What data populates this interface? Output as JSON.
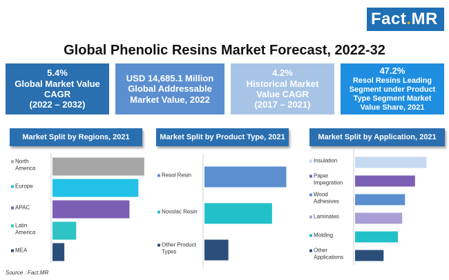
{
  "logo": {
    "prefix": "Fact",
    "dot": ".",
    "suffix": "MR"
  },
  "title": "Global Phenolic Resins Market Forecast, 2022-32",
  "kpis": [
    {
      "lines": [
        "5.4%",
        "Global Market Value",
        "CAGR",
        "(2022 – 2032)"
      ]
    },
    {
      "lines": [
        "USD 14,685.1 Million",
        "Global Addressable",
        "Market Value, 2022"
      ]
    },
    {
      "lines": [
        "4.2%",
        "Historical Market",
        "Value CAGR",
        "(2017 – 2021)"
      ]
    },
    {
      "lines": [
        "47.2%",
        "Resol Resins Leading",
        "Segment under Product",
        "Type Segment Market",
        "Value Share, 2021"
      ]
    }
  ],
  "source": "Source : Fact.MR",
  "chart_data": [
    {
      "type": "bar",
      "orientation": "horizontal",
      "title": "Market Split by Regions, 2021",
      "categories": [
        "North America",
        "Europe",
        "APAC",
        "Latin America",
        "MEA"
      ],
      "category_lines": [
        [
          "North",
          "America"
        ],
        [
          "Europe"
        ],
        [
          "APAC"
        ],
        [
          "Latin",
          "America"
        ],
        [
          "MEA"
        ]
      ],
      "values": [
        31,
        29,
        26,
        8,
        4
      ],
      "colors": [
        "#a6a6a6",
        "#22c1e8",
        "#7a5fb5",
        "#2ec4c4",
        "#2b4f7a"
      ],
      "xlim": [
        0,
        35
      ],
      "xlabel": "",
      "ylabel": ""
    },
    {
      "type": "bar",
      "orientation": "horizontal",
      "title": "Market Split by Product Type, 2021",
      "categories": [
        "Resol Resin",
        "Novolac Resin",
        "Other Product Types"
      ],
      "category_lines": [
        [
          "Resol Resin"
        ],
        [
          "Novolac Resin"
        ],
        [
          "Other Product",
          "Types"
        ]
      ],
      "values": [
        47.2,
        39,
        13.8
      ],
      "colors": [
        "#5b8fd0",
        "#22c1c9",
        "#2b4f7a"
      ],
      "xlim": [
        0,
        55
      ],
      "xlabel": "",
      "ylabel": ""
    },
    {
      "type": "bar",
      "orientation": "horizontal",
      "title": "Market Split by Application, 2021",
      "categories": [
        "Insulation",
        "Paper Impegration",
        "Wood Adhesives",
        "Laminates",
        "Molding",
        "Other Applications"
      ],
      "category_lines": [
        [
          "Insulation"
        ],
        [
          "Paper",
          "Impegration"
        ],
        [
          "Wood",
          "Adhesives"
        ],
        [
          "Laminates"
        ],
        [
          "Molding"
        ],
        [
          "Other",
          "Applications"
        ]
      ],
      "values": [
        25,
        21,
        17.5,
        16.5,
        15,
        10
      ],
      "colors": [
        "#c5d9f1",
        "#7a5fb5",
        "#5b8fd0",
        "#a99fd6",
        "#22c1c9",
        "#2b4f7a"
      ],
      "xlim": [
        0,
        30
      ],
      "xlabel": "",
      "ylabel": ""
    }
  ]
}
